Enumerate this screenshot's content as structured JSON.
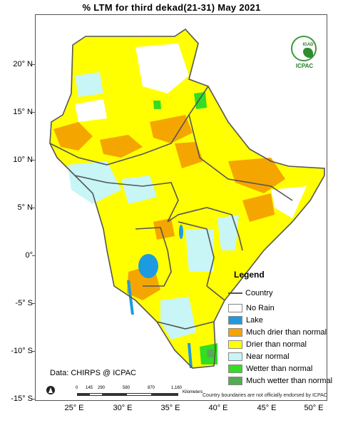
{
  "title": "% LTM  for  third  dekad(21-31)  May  2021",
  "logo": {
    "top_text": "IGAD",
    "label": "ICPAC"
  },
  "axes": {
    "y_labels": [
      "20° N",
      "15° N",
      "10° N",
      "5° N",
      "0°",
      "-5° S",
      "-10° S",
      "-15° S"
    ],
    "x_labels": [
      "25° E",
      "30° E",
      "35° E",
      "40° E",
      "45° E",
      "50° E"
    ]
  },
  "legend": {
    "title": "Legend",
    "items": [
      {
        "label": "Country",
        "kind": "line",
        "color": "#555555"
      },
      {
        "label": "No Rain",
        "kind": "box",
        "color": "#ffffff"
      },
      {
        "label": "Lake",
        "kind": "box",
        "color": "#1e9be0"
      },
      {
        "label": "Much drier than normal",
        "kind": "box",
        "color": "#f5a500"
      },
      {
        "label": "Drier than normal",
        "kind": "box",
        "color": "#ffff00"
      },
      {
        "label": "Near normal",
        "kind": "box",
        "color": "#c8f5f5"
      },
      {
        "label": "Wetter than normal",
        "kind": "box",
        "color": "#33dd22"
      },
      {
        "label": "Much wetter than normal",
        "kind": "box",
        "color": "#55aa55"
      }
    ]
  },
  "data_source": "Data: CHIRPS @ ICPAC",
  "scale": {
    "ticks": [
      "0",
      "145",
      "290",
      "580",
      "870",
      "1,160"
    ],
    "unit": "Kilometers"
  },
  "disclaimer": "Country boundaries are not officially endorsed by ICPAC"
}
